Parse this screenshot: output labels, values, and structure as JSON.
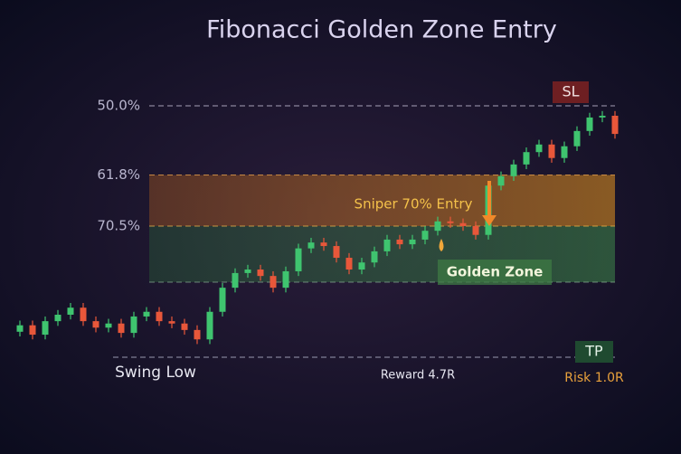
{
  "chart_data": {
    "type": "candlestick",
    "title": "Fibonacci Golden Zone Entry",
    "ylim": [
      55,
      106
    ],
    "yticks": [
      {
        "value": 100,
        "label": "50.0%"
      },
      {
        "value": 88.2,
        "label": "61.8%"
      },
      {
        "value": 79.5,
        "label": "70.5%"
      }
    ],
    "grid": true,
    "up_color": "#3fc46f",
    "down_color": "#e8573a",
    "open": [
      61.5,
      62.6,
      61.0,
      63.3,
      64.4,
      65.6,
      63.3,
      62.2,
      62.9,
      61.3,
      64.1,
      64.9,
      63.3,
      62.9,
      61.8,
      60.2,
      64.9,
      69.0,
      71.5,
      72.1,
      71.0,
      69.0,
      71.8,
      75.7,
      76.7,
      76.1,
      74.1,
      72.1,
      73.3,
      75.2,
      77.2,
      76.4,
      77.2,
      78.7,
      80.3,
      80.0,
      79.5,
      78.0,
      86.4,
      88.0,
      90.0,
      92.1,
      93.4,
      91.1,
      93.1,
      95.7,
      98.0,
      98.3
    ],
    "high": [
      63.4,
      63.4,
      64.1,
      65.2,
      66.4,
      66.4,
      64.1,
      63.7,
      63.7,
      64.9,
      65.7,
      65.7,
      64.1,
      63.7,
      62.6,
      65.7,
      69.8,
      72.3,
      72.9,
      72.9,
      71.8,
      72.6,
      76.5,
      77.5,
      77.5,
      76.9,
      74.9,
      74.1,
      76.0,
      78.0,
      78.0,
      78.0,
      79.5,
      81.1,
      81.1,
      80.8,
      80.3,
      87.2,
      88.8,
      90.8,
      92.9,
      94.2,
      94.2,
      93.9,
      96.5,
      98.8,
      99.1,
      99.1
    ],
    "low": [
      60.7,
      60.2,
      60.2,
      62.5,
      63.6,
      62.5,
      61.4,
      61.4,
      60.5,
      60.5,
      63.3,
      62.5,
      62.1,
      61.0,
      59.4,
      59.4,
      64.1,
      68.2,
      70.7,
      70.2,
      68.2,
      68.2,
      71.0,
      74.9,
      75.3,
      73.3,
      71.3,
      71.3,
      72.5,
      74.4,
      75.6,
      75.6,
      76.4,
      77.9,
      79.2,
      78.7,
      77.2,
      77.2,
      85.6,
      87.2,
      89.2,
      91.3,
      90.3,
      90.3,
      92.3,
      94.9,
      97.2,
      94.4
    ],
    "close": [
      62.6,
      61.0,
      63.3,
      64.4,
      65.6,
      63.3,
      62.2,
      62.9,
      61.3,
      64.1,
      64.9,
      63.3,
      62.9,
      61.8,
      60.2,
      64.9,
      69.0,
      71.5,
      72.1,
      71.0,
      69.0,
      71.8,
      75.7,
      76.7,
      76.1,
      74.1,
      72.1,
      73.3,
      75.2,
      77.2,
      76.4,
      77.2,
      78.7,
      80.3,
      80.0,
      79.5,
      78.0,
      86.4,
      88.0,
      90.0,
      92.1,
      93.4,
      91.1,
      93.1,
      95.7,
      98.0,
      98.3,
      95.2
    ],
    "stop_loss_label": "SL",
    "take_profit_label": "TP",
    "entry_label": "Sniper 70% Entry",
    "zone_label": "Golden Zone",
    "swing_low_label": "Swing Low",
    "reward_label": "Reward 4.7R",
    "risk_label": "Risk 1.0R"
  }
}
